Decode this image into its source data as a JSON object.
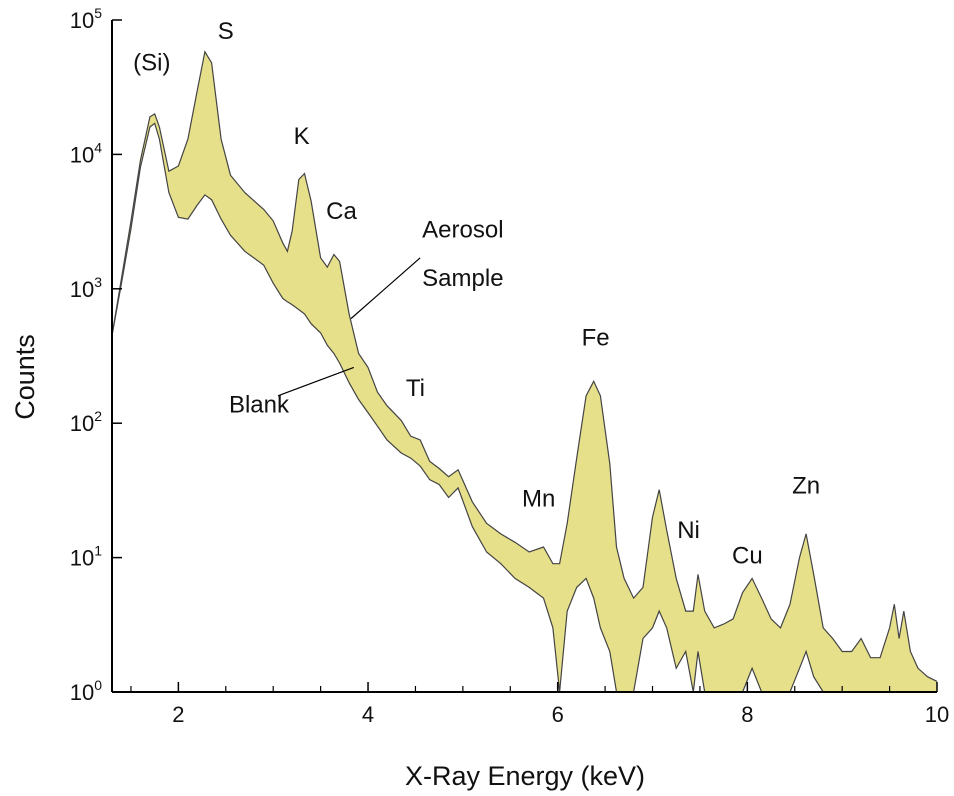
{
  "chart_data": {
    "type": "area",
    "title": "",
    "xlabel": "X-Ray Energy (keV)",
    "ylabel": "Counts",
    "xlim": [
      1.3,
      10
    ],
    "ylim": [
      1,
      100000
    ],
    "yscale": "log",
    "grid": false,
    "legend": "none",
    "x_ticks": [
      2,
      4,
      6,
      8,
      10
    ],
    "x_tick_labels": [
      "2",
      "4",
      "6",
      "8",
      "10"
    ],
    "y_ticks": [
      {
        "value": 1,
        "base": "10",
        "exp": "0"
      },
      {
        "value": 10,
        "base": "10",
        "exp": "1"
      },
      {
        "value": 100,
        "base": "10",
        "exp": "2"
      },
      {
        "value": 1000,
        "base": "10",
        "exp": "3"
      },
      {
        "value": 10000,
        "base": "10",
        "exp": "4"
      },
      {
        "value": 100000,
        "base": "10",
        "exp": "5"
      }
    ],
    "fill_color": "#e6e08a",
    "line_color": "#444444",
    "series": [
      {
        "values": [
          [
            1.3,
            450
          ],
          [
            1.4,
            1200
          ],
          [
            1.5,
            3200
          ],
          [
            1.6,
            9000
          ],
          [
            1.7,
            19000
          ],
          [
            1.75,
            20000
          ],
          [
            1.8,
            16000
          ],
          [
            1.9,
            7500
          ],
          [
            2.0,
            8200
          ],
          [
            2.1,
            13000
          ],
          [
            2.2,
            30000
          ],
          [
            2.28,
            58000
          ],
          [
            2.35,
            48000
          ],
          [
            2.45,
            13000
          ],
          [
            2.55,
            7000
          ],
          [
            2.7,
            5200
          ],
          [
            2.9,
            3900
          ],
          [
            3.0,
            3200
          ],
          [
            3.1,
            2200
          ],
          [
            3.15,
            1900
          ],
          [
            3.2,
            2700
          ],
          [
            3.27,
            6500
          ],
          [
            3.33,
            7200
          ],
          [
            3.4,
            4500
          ],
          [
            3.5,
            1700
          ],
          [
            3.57,
            1450
          ],
          [
            3.64,
            1800
          ],
          [
            3.7,
            1600
          ],
          [
            3.8,
            650
          ],
          [
            3.9,
            330
          ],
          [
            4.0,
            260
          ],
          [
            4.1,
            170
          ],
          [
            4.2,
            135
          ],
          [
            4.35,
            105
          ],
          [
            4.45,
            80
          ],
          [
            4.55,
            75
          ],
          [
            4.65,
            52
          ],
          [
            4.75,
            46
          ],
          [
            4.85,
            40
          ],
          [
            4.95,
            45
          ],
          [
            5.1,
            26
          ],
          [
            5.25,
            18
          ],
          [
            5.4,
            15
          ],
          [
            5.55,
            13
          ],
          [
            5.7,
            11
          ],
          [
            5.85,
            12
          ],
          [
            5.95,
            9
          ],
          [
            6.02,
            9
          ],
          [
            6.1,
            18
          ],
          [
            6.2,
            55
          ],
          [
            6.3,
            160
          ],
          [
            6.38,
            205
          ],
          [
            6.45,
            160
          ],
          [
            6.55,
            50
          ],
          [
            6.62,
            12
          ],
          [
            6.7,
            7
          ],
          [
            6.8,
            5
          ],
          [
            6.9,
            6
          ],
          [
            7.0,
            20
          ],
          [
            7.07,
            32
          ],
          [
            7.15,
            16
          ],
          [
            7.25,
            7
          ],
          [
            7.35,
            4
          ],
          [
            7.43,
            4
          ],
          [
            7.48,
            7.5
          ],
          [
            7.55,
            4
          ],
          [
            7.65,
            3
          ],
          [
            7.75,
            3.2
          ],
          [
            7.85,
            3.5
          ],
          [
            7.95,
            5.5
          ],
          [
            8.05,
            7
          ],
          [
            8.15,
            5
          ],
          [
            8.25,
            3.5
          ],
          [
            8.35,
            3
          ],
          [
            8.45,
            4.5
          ],
          [
            8.55,
            10
          ],
          [
            8.62,
            15
          ],
          [
            8.7,
            7.5
          ],
          [
            8.8,
            3
          ],
          [
            8.9,
            2.5
          ],
          [
            9.0,
            2
          ],
          [
            9.1,
            2
          ],
          [
            9.2,
            2.5
          ],
          [
            9.3,
            1.8
          ],
          [
            9.4,
            1.8
          ],
          [
            9.5,
            3
          ],
          [
            9.55,
            4.5
          ],
          [
            9.6,
            2.5
          ],
          [
            9.65,
            4
          ],
          [
            9.72,
            2
          ],
          [
            9.8,
            1.5
          ],
          [
            9.9,
            1.3
          ],
          [
            10.0,
            1.2
          ]
        ]
      },
      {
        "values": [
          [
            1.3,
            450
          ],
          [
            1.4,
            1100
          ],
          [
            1.5,
            2800
          ],
          [
            1.6,
            8000
          ],
          [
            1.7,
            16000
          ],
          [
            1.75,
            17000
          ],
          [
            1.8,
            13000
          ],
          [
            1.9,
            5200
          ],
          [
            2.0,
            3400
          ],
          [
            2.1,
            3300
          ],
          [
            2.2,
            4200
          ],
          [
            2.28,
            5000
          ],
          [
            2.35,
            4600
          ],
          [
            2.45,
            3300
          ],
          [
            2.55,
            2500
          ],
          [
            2.7,
            1900
          ],
          [
            2.9,
            1500
          ],
          [
            3.0,
            1100
          ],
          [
            3.1,
            850
          ],
          [
            3.15,
            800
          ],
          [
            3.2,
            760
          ],
          [
            3.27,
            700
          ],
          [
            3.33,
            650
          ],
          [
            3.4,
            550
          ],
          [
            3.5,
            470
          ],
          [
            3.57,
            380
          ],
          [
            3.64,
            330
          ],
          [
            3.7,
            280
          ],
          [
            3.8,
            200
          ],
          [
            3.9,
            150
          ],
          [
            4.0,
            120
          ],
          [
            4.1,
            95
          ],
          [
            4.2,
            75
          ],
          [
            4.35,
            60
          ],
          [
            4.45,
            55
          ],
          [
            4.55,
            48
          ],
          [
            4.65,
            38
          ],
          [
            4.75,
            35
          ],
          [
            4.85,
            28
          ],
          [
            4.95,
            33
          ],
          [
            5.1,
            17
          ],
          [
            5.25,
            11
          ],
          [
            5.4,
            9
          ],
          [
            5.55,
            7
          ],
          [
            5.7,
            6
          ],
          [
            5.85,
            5
          ],
          [
            5.95,
            3
          ],
          [
            6.02,
            1
          ],
          [
            6.1,
            4
          ],
          [
            6.2,
            6
          ],
          [
            6.3,
            7
          ],
          [
            6.38,
            5
          ],
          [
            6.45,
            3
          ],
          [
            6.55,
            2
          ],
          [
            6.62,
            1
          ],
          [
            6.7,
            1
          ],
          [
            6.8,
            1
          ],
          [
            6.9,
            2.5
          ],
          [
            7.0,
            3
          ],
          [
            7.07,
            4
          ],
          [
            7.15,
            3
          ],
          [
            7.25,
            1.5
          ],
          [
            7.35,
            2
          ],
          [
            7.43,
            1
          ],
          [
            7.48,
            2
          ],
          [
            7.55,
            1
          ],
          [
            7.65,
            1
          ],
          [
            7.75,
            1
          ],
          [
            7.85,
            1
          ],
          [
            7.95,
            1
          ],
          [
            8.05,
            1.5
          ],
          [
            8.15,
            1
          ],
          [
            8.25,
            1
          ],
          [
            8.35,
            1
          ],
          [
            8.45,
            1
          ],
          [
            8.55,
            1.5
          ],
          [
            8.62,
            2
          ],
          [
            8.7,
            1.3
          ],
          [
            8.8,
            1
          ],
          [
            8.9,
            1
          ],
          [
            9.0,
            1
          ],
          [
            9.1,
            1
          ],
          [
            9.2,
            1
          ],
          [
            9.3,
            1
          ],
          [
            9.4,
            1
          ],
          [
            9.5,
            1
          ],
          [
            9.55,
            1
          ],
          [
            9.6,
            1
          ],
          [
            9.65,
            1
          ],
          [
            9.72,
            1
          ],
          [
            9.8,
            1
          ],
          [
            9.9,
            1
          ],
          [
            10.0,
            1
          ]
        ]
      }
    ],
    "annotations": [
      {
        "text": "(Si)",
        "x": 1.72,
        "y": 42000
      },
      {
        "text": "S",
        "x": 2.5,
        "y": 72000
      },
      {
        "text": "K",
        "x": 3.3,
        "y": 12000
      },
      {
        "text": "Ca",
        "x": 3.72,
        "y": 3300
      },
      {
        "text": "Ti",
        "x": 4.5,
        "y": 160
      },
      {
        "text": "Fe",
        "x": 6.4,
        "y": 380
      },
      {
        "text": "Mn",
        "x": 5.8,
        "y": 24
      },
      {
        "text": "Ni",
        "x": 7.38,
        "y": 14
      },
      {
        "text": "Cu",
        "x": 8.0,
        "y": 9
      },
      {
        "text": "Zn",
        "x": 8.62,
        "y": 30
      },
      {
        "text": "Aerosol",
        "x": 5.0,
        "y": 2400
      },
      {
        "text": "Sample",
        "x": 5.0,
        "y": 1050
      },
      {
        "text": "Blank",
        "x": 2.85,
        "y": 120
      }
    ],
    "callouts": [
      {
        "from": [
          4.55,
          1700
        ],
        "to": [
          3.82,
          600
        ]
      },
      {
        "from": [
          3.05,
          160
        ],
        "to": [
          3.85,
          260
        ]
      }
    ]
  }
}
